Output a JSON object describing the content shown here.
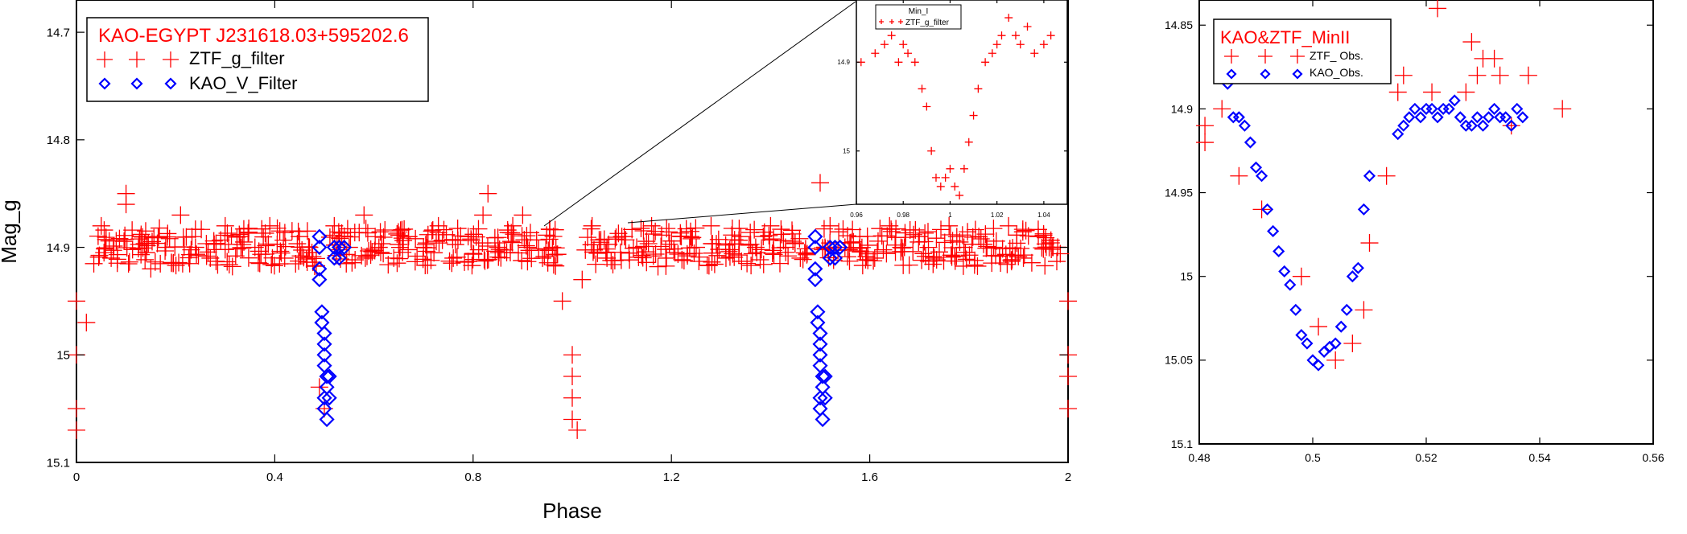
{
  "colors": {
    "ztf": "#ff0000",
    "kao": "#0000ff",
    "axis": "#000000",
    "background": "#ffffff"
  },
  "chart_data": [
    {
      "id": "main",
      "type": "scatter",
      "title": "KAO-EGYPT J231618.03+595202.6",
      "xlabel": "Phase",
      "ylabel": "Mag_g",
      "xlim": [
        0,
        2
      ],
      "ylim": [
        15.1,
        14.67
      ],
      "y_inverted": true,
      "xticks": [
        "0",
        "0.4",
        "0.8",
        "1.2",
        "1.6",
        "2"
      ],
      "yticks": [
        "14.7",
        "14.8",
        "14.9",
        "15",
        "15.1"
      ],
      "legend_position": "top-left",
      "legend": [
        {
          "label": "ZTF_g_filter",
          "marker": "plus"
        },
        {
          "label": "KAO_V_Filter",
          "marker": "diamond"
        }
      ],
      "series": [
        {
          "name": "ZTF_g_filter",
          "marker": "plus",
          "baseline": 14.9,
          "scatter": 0.018,
          "note_points": [
            [
              0.0,
              14.95
            ],
            [
              0.0,
              15.0
            ],
            [
              0.0,
              15.05
            ],
            [
              0.0,
              15.07
            ],
            [
              0.49,
              15.03
            ],
            [
              0.5,
              15.05
            ],
            [
              1.0,
              15.0
            ],
            [
              1.0,
              15.02
            ],
            [
              1.0,
              15.04
            ],
            [
              1.0,
              15.06
            ],
            [
              1.01,
              15.07
            ],
            [
              2.0,
              15.0
            ],
            [
              2.0,
              15.02
            ],
            [
              2.0,
              15.05
            ],
            [
              2.0,
              14.95
            ],
            [
              0.02,
              14.97
            ],
            [
              0.98,
              14.95
            ],
            [
              1.02,
              14.93
            ],
            [
              0.1,
              14.85
            ],
            [
              0.83,
              14.85
            ],
            [
              1.5,
              14.84
            ],
            [
              0.9,
              14.87
            ]
          ],
          "points": [
            [
              0.05,
              14.88
            ],
            [
              0.07,
              14.91
            ],
            [
              0.1,
              14.86
            ],
            [
              0.13,
              14.89
            ],
            [
              0.15,
              14.92
            ],
            [
              0.18,
              14.9
            ],
            [
              0.21,
              14.87
            ],
            [
              0.24,
              14.9
            ],
            [
              0.27,
              14.91
            ],
            [
              0.3,
              14.88
            ],
            [
              0.33,
              14.89
            ],
            [
              0.36,
              14.9
            ],
            [
              0.39,
              14.88
            ],
            [
              0.42,
              14.91
            ],
            [
              0.45,
              14.89
            ],
            [
              0.47,
              14.9
            ],
            [
              0.52,
              14.88
            ],
            [
              0.55,
              14.9
            ],
            [
              0.58,
              14.87
            ],
            [
              0.61,
              14.9
            ],
            [
              0.64,
              14.91
            ],
            [
              0.67,
              14.89
            ],
            [
              0.7,
              14.9
            ],
            [
              0.73,
              14.88
            ],
            [
              0.76,
              14.91
            ],
            [
              0.79,
              14.89
            ],
            [
              0.82,
              14.87
            ],
            [
              0.85,
              14.9
            ],
            [
              0.88,
              14.88
            ],
            [
              0.91,
              14.9
            ],
            [
              0.94,
              14.91
            ],
            [
              0.96,
              14.9
            ],
            [
              1.04,
              14.88
            ],
            [
              1.07,
              14.91
            ],
            [
              1.1,
              14.89
            ],
            [
              1.13,
              14.9
            ],
            [
              1.16,
              14.88
            ],
            [
              1.19,
              14.91
            ],
            [
              1.22,
              14.89
            ],
            [
              1.25,
              14.9
            ],
            [
              1.28,
              14.88
            ],
            [
              1.31,
              14.91
            ],
            [
              1.34,
              14.89
            ],
            [
              1.37,
              14.9
            ],
            [
              1.4,
              14.88
            ],
            [
              1.43,
              14.9
            ],
            [
              1.46,
              14.91
            ],
            [
              1.52,
              14.88
            ],
            [
              1.55,
              14.9
            ],
            [
              1.58,
              14.89
            ],
            [
              1.61,
              14.91
            ],
            [
              1.64,
              14.88
            ],
            [
              1.67,
              14.9
            ],
            [
              1.7,
              14.89
            ],
            [
              1.73,
              14.91
            ],
            [
              1.76,
              14.88
            ],
            [
              1.79,
              14.9
            ],
            [
              1.82,
              14.89
            ],
            [
              1.85,
              14.9
            ],
            [
              1.88,
              14.88
            ],
            [
              1.91,
              14.91
            ],
            [
              1.94,
              14.89
            ],
            [
              1.97,
              14.9
            ]
          ]
        },
        {
          "name": "KAO_V_Filter",
          "marker": "diamond",
          "points": [
            [
              0.49,
              14.89
            ],
            [
              0.49,
              14.9
            ],
            [
              0.49,
              14.92
            ],
            [
              0.49,
              14.93
            ],
            [
              0.495,
              14.96
            ],
            [
              0.495,
              14.97
            ],
            [
              0.5,
              14.98
            ],
            [
              0.5,
              14.99
            ],
            [
              0.5,
              15.0
            ],
            [
              0.5,
              15.01
            ],
            [
              0.505,
              15.02
            ],
            [
              0.505,
              15.03
            ],
            [
              0.5,
              15.04
            ],
            [
              0.5,
              15.05
            ],
            [
              0.505,
              15.06
            ],
            [
              0.51,
              15.04
            ],
            [
              0.51,
              15.02
            ],
            [
              0.52,
              14.9
            ],
            [
              0.52,
              14.91
            ],
            [
              0.53,
              14.9
            ],
            [
              0.53,
              14.91
            ],
            [
              0.54,
              14.9
            ],
            [
              1.49,
              14.89
            ],
            [
              1.49,
              14.9
            ],
            [
              1.49,
              14.92
            ],
            [
              1.49,
              14.93
            ],
            [
              1.495,
              14.96
            ],
            [
              1.495,
              14.97
            ],
            [
              1.5,
              14.98
            ],
            [
              1.5,
              14.99
            ],
            [
              1.5,
              15.0
            ],
            [
              1.5,
              15.01
            ],
            [
              1.505,
              15.02
            ],
            [
              1.505,
              15.03
            ],
            [
              1.5,
              15.04
            ],
            [
              1.5,
              15.05
            ],
            [
              1.505,
              15.06
            ],
            [
              1.51,
              15.04
            ],
            [
              1.51,
              15.02
            ],
            [
              1.52,
              14.9
            ],
            [
              1.52,
              14.91
            ],
            [
              1.53,
              14.9
            ],
            [
              1.53,
              14.91
            ],
            [
              1.54,
              14.9
            ]
          ]
        }
      ]
    },
    {
      "id": "inset",
      "type": "scatter",
      "title": "Min_I",
      "xlim": [
        0.96,
        1.05
      ],
      "ylim": [
        15.06,
        14.83
      ],
      "y_inverted": true,
      "xticks": [
        "0.96",
        "0.98",
        "1",
        "1.02",
        "1.04"
      ],
      "yticks": [
        "14.9",
        "15"
      ],
      "legend_position": "top-center",
      "legend": [
        {
          "label": "ZTF_g_filter",
          "marker": "plus"
        }
      ],
      "series": [
        {
          "name": "ZTF_g_filter",
          "marker": "plus",
          "points": [
            [
              0.962,
              14.9
            ],
            [
              0.968,
              14.89
            ],
            [
              0.972,
              14.88
            ],
            [
              0.975,
              14.87
            ],
            [
              0.978,
              14.9
            ],
            [
              0.98,
              14.88
            ],
            [
              0.982,
              14.89
            ],
            [
              0.985,
              14.9
            ],
            [
              0.988,
              14.93
            ],
            [
              0.99,
              14.95
            ],
            [
              0.992,
              15.0
            ],
            [
              0.994,
              15.03
            ],
            [
              0.996,
              15.04
            ],
            [
              0.998,
              15.03
            ],
            [
              1.0,
              15.02
            ],
            [
              1.002,
              15.04
            ],
            [
              1.004,
              15.05
            ],
            [
              1.006,
              15.02
            ],
            [
              1.008,
              14.99
            ],
            [
              1.01,
              14.96
            ],
            [
              1.012,
              14.93
            ],
            [
              1.015,
              14.9
            ],
            [
              1.018,
              14.89
            ],
            [
              1.02,
              14.88
            ],
            [
              1.022,
              14.87
            ],
            [
              1.025,
              14.85
            ],
            [
              1.028,
              14.87
            ],
            [
              1.03,
              14.88
            ],
            [
              1.033,
              14.86
            ],
            [
              1.036,
              14.89
            ],
            [
              1.04,
              14.88
            ],
            [
              1.043,
              14.87
            ]
          ]
        }
      ]
    },
    {
      "id": "minII",
      "type": "scatter",
      "title": "KAO&ZTF_MinII",
      "xlim": [
        0.48,
        0.56
      ],
      "ylim": [
        15.1,
        14.835
      ],
      "y_inverted": true,
      "xticks": [
        "0.48",
        "0.5",
        "0.52",
        "0.54",
        "0.56"
      ],
      "yticks": [
        "14.85",
        "14.9",
        "14.95",
        "15",
        "15.05",
        "15.1"
      ],
      "legend_position": "top-left",
      "legend": [
        {
          "label": "ZTF_ Obs.",
          "marker": "plus"
        },
        {
          "label": "KAO_Obs.",
          "marker": "diamond"
        }
      ],
      "series": [
        {
          "name": "ZTF_ Obs.",
          "marker": "plus",
          "points": [
            [
              0.481,
              14.91
            ],
            [
              0.481,
              14.92
            ],
            [
              0.484,
              14.9
            ],
            [
              0.487,
              14.94
            ],
            [
              0.491,
              14.96
            ],
            [
              0.498,
              15.0
            ],
            [
              0.501,
              15.03
            ],
            [
              0.504,
              15.05
            ],
            [
              0.507,
              15.04
            ],
            [
              0.509,
              15.02
            ],
            [
              0.51,
              14.98
            ],
            [
              0.513,
              14.94
            ],
            [
              0.515,
              14.89
            ],
            [
              0.516,
              14.88
            ],
            [
              0.521,
              14.89
            ],
            [
              0.522,
              14.84
            ],
            [
              0.527,
              14.89
            ],
            [
              0.528,
              14.86
            ],
            [
              0.529,
              14.88
            ],
            [
              0.53,
              14.87
            ],
            [
              0.532,
              14.87
            ],
            [
              0.533,
              14.88
            ],
            [
              0.535,
              14.91
            ],
            [
              0.538,
              14.88
            ],
            [
              0.544,
              14.9
            ]
          ]
        },
        {
          "name": "KAO_Obs.",
          "marker": "diamond",
          "points": [
            [
              0.485,
              14.885
            ],
            [
              0.486,
              14.905
            ],
            [
              0.487,
              14.905
            ],
            [
              0.488,
              14.91
            ],
            [
              0.489,
              14.92
            ],
            [
              0.49,
              14.935
            ],
            [
              0.491,
              14.94
            ],
            [
              0.492,
              14.96
            ],
            [
              0.493,
              14.973
            ],
            [
              0.494,
              14.985
            ],
            [
              0.495,
              14.997
            ],
            [
              0.496,
              15.005
            ],
            [
              0.497,
              15.02
            ],
            [
              0.498,
              15.035
            ],
            [
              0.499,
              15.04
            ],
            [
              0.5,
              15.05
            ],
            [
              0.501,
              15.053
            ],
            [
              0.502,
              15.045
            ],
            [
              0.503,
              15.042
            ],
            [
              0.504,
              15.04
            ],
            [
              0.505,
              15.03
            ],
            [
              0.506,
              15.02
            ],
            [
              0.507,
              15.0
            ],
            [
              0.508,
              14.995
            ],
            [
              0.509,
              14.96
            ],
            [
              0.51,
              14.94
            ],
            [
              0.515,
              14.915
            ],
            [
              0.516,
              14.91
            ],
            [
              0.517,
              14.905
            ],
            [
              0.518,
              14.9
            ],
            [
              0.519,
              14.905
            ],
            [
              0.52,
              14.9
            ],
            [
              0.521,
              14.9
            ],
            [
              0.522,
              14.905
            ],
            [
              0.523,
              14.9
            ],
            [
              0.524,
              14.9
            ],
            [
              0.525,
              14.895
            ],
            [
              0.526,
              14.905
            ],
            [
              0.527,
              14.91
            ],
            [
              0.528,
              14.91
            ],
            [
              0.529,
              14.905
            ],
            [
              0.53,
              14.91
            ],
            [
              0.531,
              14.905
            ],
            [
              0.532,
              14.9
            ],
            [
              0.533,
              14.905
            ],
            [
              0.534,
              14.905
            ],
            [
              0.535,
              14.91
            ],
            [
              0.536,
              14.9
            ],
            [
              0.537,
              14.905
            ]
          ]
        }
      ]
    }
  ]
}
